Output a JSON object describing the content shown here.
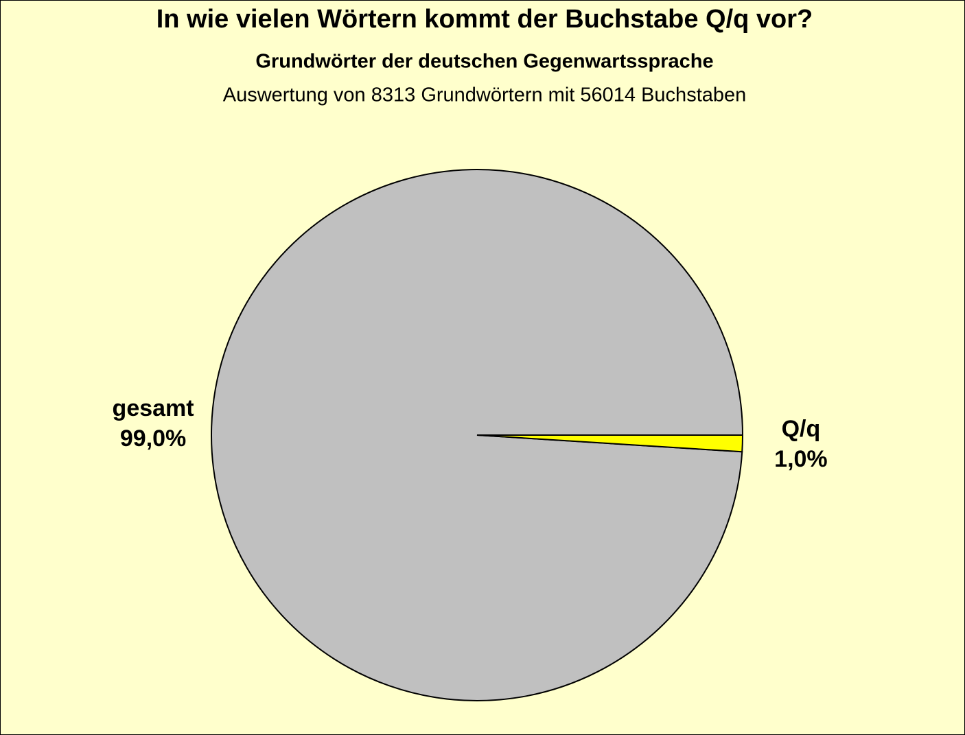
{
  "chart_data": {
    "type": "pie",
    "title": "In wie vielen Wörtern kommt der Buchstabe Q/q vor?",
    "subtitle": "Grundwörter der deutschen Gegenwartssprache",
    "description": "Auswertung von 8313 Grundwörtern mit 56014 Buchstaben",
    "categories": [
      "gesamt",
      "Q/q"
    ],
    "values": [
      99.0,
      1.0
    ],
    "value_labels": [
      "99,0%",
      "1,0%"
    ],
    "colors": [
      "#c0c0c0",
      "#ffff00"
    ]
  }
}
